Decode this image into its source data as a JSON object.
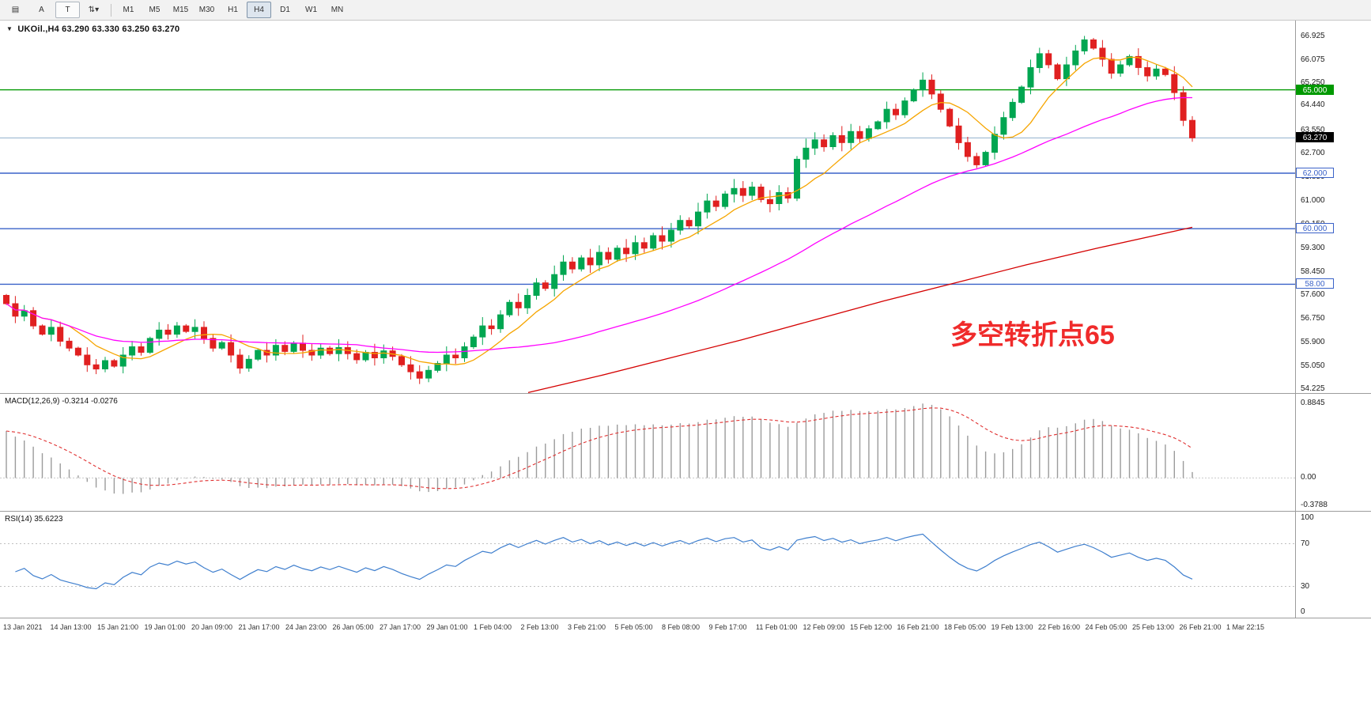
{
  "toolbar": {
    "icons": [
      {
        "name": "chart-grid-icon",
        "glyph": "▤"
      },
      {
        "name": "arrow-tool-icon",
        "glyph": "A"
      },
      {
        "name": "text-tool-icon",
        "glyph": "T"
      },
      {
        "name": "scale-adjust-icon",
        "glyph": "⇅▾"
      }
    ],
    "timeframes": [
      "M1",
      "M5",
      "M15",
      "M30",
      "H1",
      "H4",
      "D1",
      "W1",
      "MN"
    ],
    "active_timeframe": "H4"
  },
  "chart": {
    "collapse_glyph": "▼",
    "title": "UKOil.,H4  63.290 63.330 63.250 63.270",
    "symbol": "UKOil",
    "period": "H4",
    "ohlc": {
      "open": "63.290",
      "high": "63.330",
      "low": "63.250",
      "close": "63.270"
    },
    "annotation": {
      "text": "多空转折点65",
      "color": "#F02B2B"
    },
    "scale_labels": [
      66.925,
      66.075,
      65.25,
      64.44,
      63.55,
      62.7,
      61.85,
      61.0,
      60.15,
      59.3,
      58.45,
      57.6,
      56.75,
      55.9,
      55.05,
      54.225
    ],
    "hlines": [
      {
        "price": 65.0,
        "label": "65.000",
        "color": "#009900",
        "badge": "solid"
      },
      {
        "price": 62.0,
        "label": "62.000",
        "color": "#3A62C8",
        "badge": "outline"
      },
      {
        "price": 60.0,
        "label": "60.000",
        "color": "#3A62C8",
        "badge": "outline"
      },
      {
        "price": 58.0,
        "label": "58.00",
        "color": "#3A62C8",
        "badge": "outline"
      }
    ],
    "bid": {
      "price": 63.27,
      "label": "63.270",
      "line_color": "#8FB0CC",
      "badge_bg": "#000000"
    }
  },
  "macd": {
    "header": "MACD(12,26,9) -0.3214 -0.0276",
    "value": "-0.3214",
    "signal_value": "-0.0276",
    "scale_labels": [
      "0.8845",
      "0.00",
      "-0.3788"
    ],
    "histogram_color": "#9B9B9B",
    "signal_color": "#E03030"
  },
  "rsi": {
    "header": "RSI(14) 35.6223",
    "value": "35.6223",
    "scale_labels": [
      "100",
      "70",
      "30",
      "0"
    ],
    "levels": [
      70,
      30
    ],
    "line_color": "#3F7FCE"
  },
  "time_axis": [
    "13 Jan 2021",
    "14 Jan 13:00",
    "15 Jan 21:00",
    "19 Jan 01:00",
    "20 Jan 09:00",
    "21 Jan 17:00",
    "24 Jan 23:00",
    "26 Jan 05:00",
    "27 Jan 17:00",
    "29 Jan 01:00",
    "1 Feb 04:00",
    "2 Feb 13:00",
    "3 Feb 21:00",
    "5 Feb 05:00",
    "8 Feb 08:00",
    "9 Feb 17:00",
    "11 Feb 01:00",
    "12 Feb 09:00",
    "15 Feb 12:00",
    "16 Feb 21:00",
    "18 Feb 05:00",
    "19 Feb 13:00",
    "22 Feb 16:00",
    "24 Feb 05:00",
    "25 Feb 13:00",
    "26 Feb 21:00",
    "1 Mar 22:15"
  ],
  "chart_data": [
    {
      "type": "candlestick",
      "symbol": "UKOil",
      "period": "H4",
      "title": "UKOil.,H4",
      "price_min": 54.055,
      "price_max": 67.494,
      "up_color": "#00A651",
      "down_color": "#E02020",
      "first_open": 57.6,
      "closes": [
        57.3,
        56.85,
        57.05,
        56.5,
        56.2,
        56.45,
        55.95,
        55.7,
        55.45,
        55.1,
        54.95,
        55.25,
        55.05,
        55.45,
        55.75,
        55.55,
        56.05,
        56.35,
        56.2,
        56.5,
        56.3,
        56.45,
        56.05,
        55.7,
        55.9,
        55.45,
        54.98,
        55.3,
        55.62,
        55.45,
        55.8,
        55.58,
        55.88,
        55.62,
        55.45,
        55.7,
        55.5,
        55.72,
        55.5,
        55.28,
        55.55,
        55.35,
        55.6,
        55.4,
        55.1,
        54.85,
        54.62,
        54.9,
        55.15,
        55.45,
        55.35,
        55.75,
        56.1,
        56.5,
        56.4,
        56.9,
        57.35,
        57.15,
        57.6,
        58.05,
        57.85,
        58.35,
        58.8,
        58.55,
        58.95,
        58.7,
        59.15,
        58.9,
        59.3,
        59.1,
        59.5,
        59.3,
        59.75,
        59.55,
        59.95,
        60.3,
        60.1,
        60.6,
        61.0,
        60.8,
        61.25,
        61.45,
        61.2,
        61.5,
        61.05,
        60.9,
        61.3,
        61.1,
        62.5,
        62.9,
        63.2,
        62.95,
        63.35,
        63.1,
        63.5,
        63.25,
        63.6,
        63.85,
        64.3,
        64.1,
        64.6,
        65.0,
        65.35,
        64.85,
        64.3,
        63.7,
        63.1,
        62.6,
        62.3,
        62.75,
        63.4,
        64.0,
        64.55,
        65.1,
        65.8,
        66.3,
        65.9,
        65.4,
        65.9,
        66.4,
        66.8,
        66.5,
        66.1,
        65.6,
        65.9,
        66.2,
        65.8,
        65.5,
        65.75,
        65.55,
        64.9,
        63.9,
        63.27
      ],
      "moving_averages": [
        {
          "name": "fast",
          "color": "#F6A500",
          "period": 8
        },
        {
          "name": "medium",
          "color": "#FF00FF",
          "period": 40
        },
        {
          "name": "slow",
          "color": "#D40000",
          "points": [
            [
              0.44,
              54.1
            ],
            [
              0.5,
              54.7
            ],
            [
              0.56,
              55.35
            ],
            [
              0.62,
              56.0
            ],
            [
              0.68,
              56.7
            ],
            [
              0.74,
              57.4
            ],
            [
              0.8,
              58.05
            ],
            [
              0.86,
              58.7
            ],
            [
              0.92,
              59.3
            ],
            [
              1.0,
              60.05
            ]
          ]
        }
      ]
    },
    {
      "type": "macd_histogram",
      "fast": 12,
      "slow": 26,
      "signal": 9,
      "current": -0.3214,
      "current_signal": -0.0276,
      "ymax": 1.0,
      "ymin": -0.4,
      "peak_label": 0.8845
    },
    {
      "type": "line",
      "name": "RSI",
      "period": 14,
      "current": 35.6223,
      "ymin": 0,
      "ymax": 100,
      "levels": [
        70,
        30
      ]
    }
  ]
}
